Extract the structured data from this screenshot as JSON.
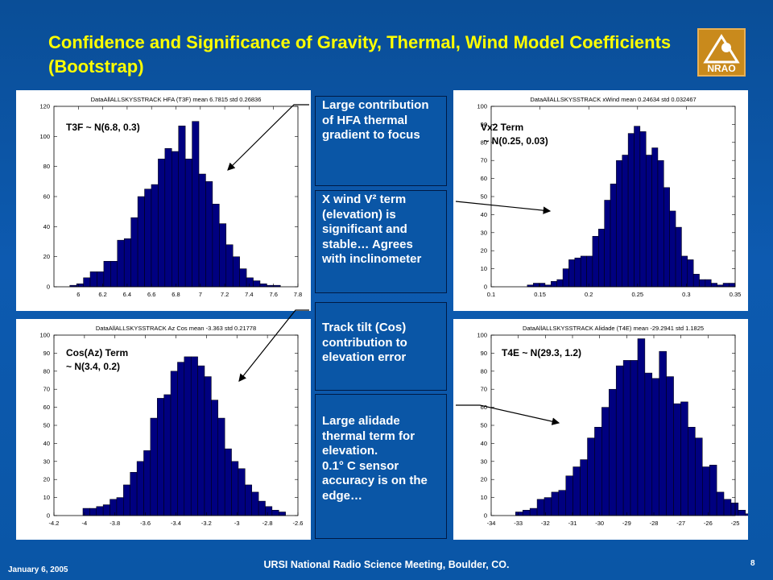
{
  "title": "Confidence and Significance of Gravity, Thermal, Wind Model Coefficients (Bootstrap)",
  "logo_text": "NRAO",
  "notes": [
    {
      "text": "Large contribution of HFA thermal gradient to focus"
    },
    {
      "text": "X wind V² term (elevation) is significant and stable… Agrees with inclinometer"
    },
    {
      "text": "Track tilt (Cos) contribution to elevation error"
    },
    {
      "text": "Large alidade thermal term for elevation.\n0.1° C sensor accuracy is on the edge…"
    }
  ],
  "panel_labels": [
    {
      "line1": "T3F ~ N(6.8, 0.3)",
      "line2": ""
    },
    {
      "line1": "Vx2 Term",
      "line2": " ~ N(0.25, 0.03)"
    },
    {
      "line1": "Cos(Az) Term",
      "line2": "~ N(3.4, 0.2)"
    },
    {
      "line1": "T4E ~ N(29.3, 1.2)",
      "line2": ""
    }
  ],
  "footer": {
    "date": "January 6, 2005",
    "center": "URSI National Radio Science Meeting, Boulder, CO.",
    "page": "8"
  },
  "colors": {
    "bar": "#000080",
    "title": "#ffff00",
    "background": "#0a56a6"
  },
  "chart_data": [
    {
      "type": "bar",
      "title": "DataAllALLSKYSSTRACK HFA (T3F)  mean 6.7815 std 0.26836",
      "xlim": [
        5.8,
        7.8
      ],
      "ylim": [
        0,
        120
      ],
      "xticks": [
        6,
        6.2,
        6.4,
        6.6,
        6.8,
        7,
        7.2,
        7.4,
        7.6,
        7.8
      ],
      "yticks": [
        0,
        20,
        40,
        60,
        80,
        100,
        120
      ],
      "bin_start": 5.93,
      "bin_width": 0.0557,
      "values": [
        1,
        2,
        6,
        10,
        10,
        17,
        17,
        31,
        32,
        46,
        60,
        65,
        68,
        85,
        92,
        90,
        107,
        85,
        110,
        75,
        70,
        55,
        42,
        28,
        20,
        12,
        6,
        4,
        2,
        1,
        1
      ]
    },
    {
      "type": "bar",
      "title": "DataAllALLSKYSSTRACK xWind  mean 0.24634 std 0.032467",
      "xlim": [
        0.1,
        0.35
      ],
      "ylim": [
        0,
        100
      ],
      "xticks": [
        0.1,
        0.15,
        0.2,
        0.25,
        0.3,
        0.35
      ],
      "yticks": [
        0,
        10,
        20,
        30,
        40,
        50,
        60,
        70,
        80,
        90,
        100
      ],
      "bin_start": 0.137,
      "bin_width": 0.00608,
      "values": [
        1,
        2,
        2,
        1,
        3,
        4,
        10,
        15,
        16,
        17,
        17,
        28,
        32,
        48,
        57,
        70,
        73,
        85,
        89,
        86,
        73,
        77,
        70,
        55,
        42,
        33,
        17,
        15,
        7,
        4,
        4,
        2,
        1,
        2,
        2
      ]
    },
    {
      "type": "bar",
      "title": "DataAllALLSKYSSTRACK Az Cos  mean -3.363 std 0.21778",
      "xlim": [
        -4.2,
        -2.6
      ],
      "ylim": [
        0,
        100
      ],
      "xticks": [
        -4.2,
        -4,
        -3.8,
        -3.6,
        -3.4,
        -3.2,
        -3,
        -2.8,
        -2.6
      ],
      "yticks": [
        0,
        10,
        20,
        30,
        40,
        50,
        60,
        70,
        80,
        90,
        100
      ],
      "bin_start": -4.01,
      "bin_width": 0.0443,
      "values": [
        4,
        4,
        5,
        6,
        9,
        10,
        17,
        24,
        30,
        36,
        54,
        65,
        67,
        80,
        85,
        88,
        88,
        83,
        77,
        64,
        54,
        37,
        30,
        26,
        17,
        13,
        8,
        5,
        3,
        2
      ]
    },
    {
      "type": "bar",
      "title": "DataAllALLSKYSSTRACK Alidade (T4E)  mean -29.2941 std 1.1825",
      "xlim": [
        -34,
        -25
      ],
      "ylim": [
        0,
        100
      ],
      "xticks": [
        -34,
        -33,
        -32,
        -31,
        -30,
        -29,
        -28,
        -27,
        -26,
        -25
      ],
      "yticks": [
        0,
        10,
        20,
        30,
        40,
        50,
        60,
        70,
        80,
        90,
        100
      ],
      "bin_start": -33.1,
      "bin_width": 0.265,
      "values": [
        2,
        3,
        4,
        9,
        10,
        13,
        14,
        22,
        27,
        31,
        43,
        49,
        60,
        70,
        83,
        86,
        86,
        98,
        79,
        76,
        91,
        77,
        62,
        63,
        49,
        43,
        27,
        28,
        13,
        9,
        7,
        3,
        1
      ]
    }
  ]
}
